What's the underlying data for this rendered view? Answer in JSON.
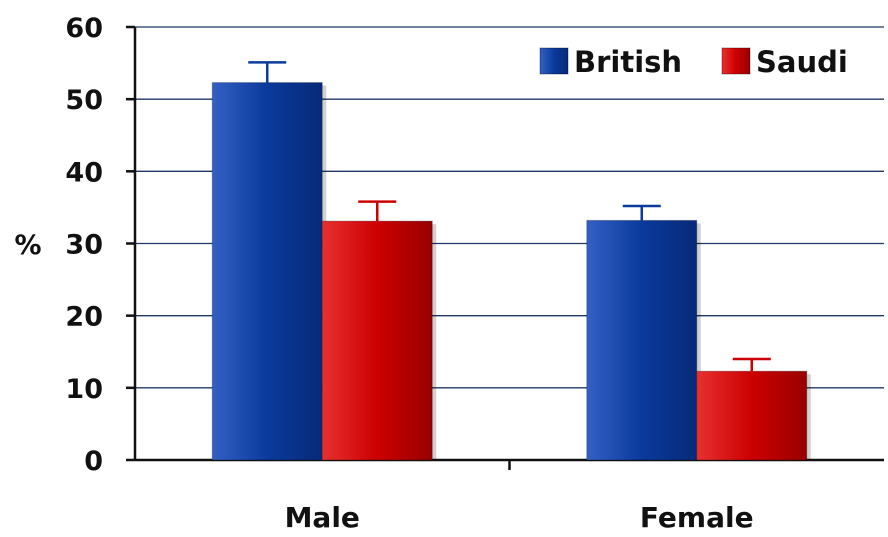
{
  "chart_data": {
    "type": "bar",
    "title": "",
    "xlabel": "",
    "ylabel": "%",
    "ylim": [
      0,
      60
    ],
    "yticks": [
      0,
      10,
      20,
      30,
      40,
      50,
      60
    ],
    "categories": [
      "Male",
      "Female"
    ],
    "series": [
      {
        "name": "British",
        "color": "#0a3a9c",
        "values": [
          52.3,
          33.2
        ],
        "error": [
          2.8,
          2.0
        ]
      },
      {
        "name": "Saudi",
        "color": "#cc0000",
        "values": [
          33.1,
          12.3
        ],
        "error": [
          2.7,
          1.7
        ]
      }
    ],
    "grid": true,
    "legend": "top-right"
  }
}
